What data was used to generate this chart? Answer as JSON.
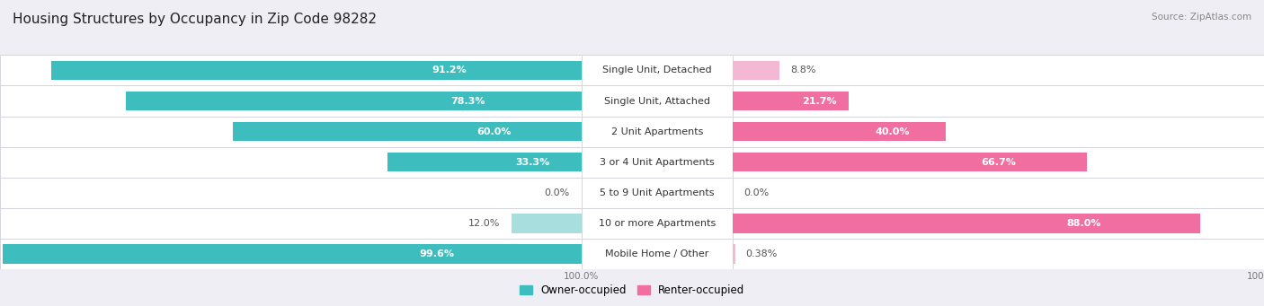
{
  "title": "Housing Structures by Occupancy in Zip Code 98282",
  "source": "Source: ZipAtlas.com",
  "categories": [
    "Single Unit, Detached",
    "Single Unit, Attached",
    "2 Unit Apartments",
    "3 or 4 Unit Apartments",
    "5 to 9 Unit Apartments",
    "10 or more Apartments",
    "Mobile Home / Other"
  ],
  "owner_pct": [
    91.2,
    78.3,
    60.0,
    33.3,
    0.0,
    12.0,
    99.6
  ],
  "renter_pct": [
    8.8,
    21.7,
    40.0,
    66.7,
    0.0,
    88.0,
    0.38
  ],
  "owner_color_strong": "#3DBDBD",
  "owner_color_light": "#A8DEDE",
  "renter_color_strong": "#F06FA0",
  "renter_color_light": "#F5B8D4",
  "bg_color": "#EEEEF4",
  "row_bg_color": "#FFFFFF",
  "row_border_color": "#D0D0DC",
  "title_fontsize": 11,
  "source_fontsize": 7.5,
  "pct_label_fontsize": 8,
  "cat_label_fontsize": 8,
  "legend_fontsize": 8.5,
  "axis_tick_fontsize": 7.5,
  "bar_height": 0.62,
  "row_padding": 0.5,
  "owner_strong_threshold": 20,
  "renter_strong_threshold": 20
}
